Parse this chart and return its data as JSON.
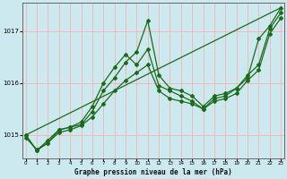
{
  "title": "Graphe pression niveau de la mer (hPa)",
  "background_color": "#cde9f0",
  "grid_color": "#f5b8b8",
  "line_color": "#1a6b1a",
  "x_ticks": [
    0,
    1,
    2,
    3,
    4,
    5,
    6,
    7,
    8,
    9,
    10,
    11,
    12,
    13,
    14,
    15,
    16,
    17,
    18,
    19,
    20,
    21,
    22,
    23
  ],
  "y_ticks": [
    1015,
    1016,
    1017
  ],
  "ylim": [
    1014.55,
    1017.55
  ],
  "xlim": [
    -0.3,
    23.3
  ],
  "series": [
    {
      "x": [
        0,
        1,
        2,
        3,
        4,
        5,
        6,
        7,
        8,
        9,
        10,
        11,
        12,
        13,
        14,
        15,
        16,
        17,
        18,
        19,
        20,
        21,
        22,
        23
      ],
      "y": [
        1015.0,
        1014.7,
        1014.85,
        1015.1,
        1015.15,
        1015.2,
        1015.45,
        1015.85,
        1016.1,
        1016.4,
        1016.6,
        1017.2,
        1016.15,
        1015.9,
        1015.85,
        1015.75,
        1015.55,
        1015.75,
        1015.8,
        1015.9,
        1016.1,
        1016.85,
        1017.1,
        1017.45
      ],
      "marker": "D",
      "markersize": 2.0,
      "linewidth": 0.9
    },
    {
      "x": [
        0,
        1,
        2,
        3,
        4,
        5,
        6,
        7,
        8,
        9,
        10,
        11,
        12,
        13,
        14,
        15,
        16,
        17,
        18,
        19,
        20,
        21,
        22,
        23
      ],
      "y": [
        1015.0,
        1014.7,
        1014.9,
        1015.1,
        1015.15,
        1015.25,
        1015.55,
        1016.0,
        1016.3,
        1016.55,
        1016.35,
        1016.65,
        1015.95,
        1015.85,
        1015.75,
        1015.65,
        1015.5,
        1015.7,
        1015.75,
        1015.9,
        1016.15,
        1016.35,
        1017.05,
        1017.35
      ],
      "marker": "D",
      "markersize": 2.0,
      "linewidth": 0.9
    },
    {
      "x": [
        0,
        1,
        2,
        3,
        4,
        5,
        6,
        7,
        8,
        9,
        10,
        11,
        12,
        13,
        14,
        15,
        16,
        17,
        18,
        19,
        20,
        21,
        22,
        23
      ],
      "y": [
        1014.95,
        1014.72,
        1014.85,
        1015.05,
        1015.1,
        1015.18,
        1015.35,
        1015.6,
        1015.85,
        1016.05,
        1016.2,
        1016.35,
        1015.85,
        1015.7,
        1015.65,
        1015.6,
        1015.5,
        1015.65,
        1015.7,
        1015.8,
        1016.05,
        1016.25,
        1016.95,
        1017.25
      ],
      "marker": "D",
      "markersize": 2.0,
      "linewidth": 0.9
    },
    {
      "x": [
        0,
        23
      ],
      "y": [
        1015.0,
        1017.45
      ],
      "marker": null,
      "markersize": 0,
      "linewidth": 0.9
    }
  ]
}
